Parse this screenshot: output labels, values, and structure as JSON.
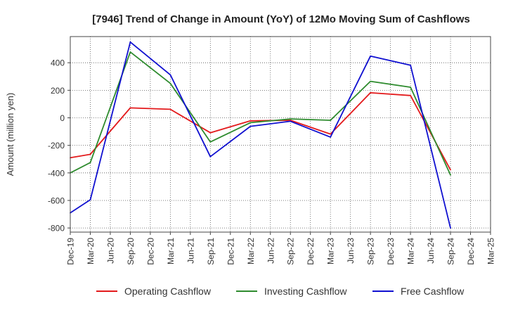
{
  "chart_data": {
    "type": "line",
    "title": "[7946]  Trend of Change in Amount (YoY) of 12Mo Moving Sum of Cashflows",
    "xlabel": "",
    "ylabel": "Amount (million yen)",
    "ylim": [
      -830,
      590
    ],
    "yticks": [
      -800,
      -600,
      -400,
      -200,
      0,
      200,
      400
    ],
    "ytick_labels": [
      "-800",
      "-600",
      "-400",
      "-200",
      "0",
      "200",
      "400"
    ],
    "categories": [
      "Dec-19",
      "Mar-20",
      "Jun-20",
      "Sep-20",
      "Dec-20",
      "Mar-21",
      "Jun-21",
      "Sep-21",
      "Dec-21",
      "Mar-22",
      "Jun-22",
      "Sep-22",
      "Dec-22",
      "Mar-23",
      "Jun-23",
      "Sep-23",
      "Dec-23",
      "Mar-24",
      "Jun-24",
      "Sep-24",
      "Dec-24",
      "Mar-25"
    ],
    "grid": true,
    "legend_position": "bottom",
    "series": [
      {
        "name": "Operating Cashflow",
        "color": "#e31a1c",
        "values": [
          -290,
          -265,
          null,
          72,
          null,
          62,
          null,
          -108,
          null,
          -22,
          null,
          -18,
          null,
          -118,
          null,
          182,
          null,
          162,
          null,
          -378,
          null,
          null
        ]
      },
      {
        "name": "Investing Cashflow",
        "color": "#2e8b2e",
        "values": [
          -400,
          -325,
          null,
          478,
          null,
          250,
          null,
          -175,
          null,
          -35,
          null,
          -8,
          null,
          -18,
          null,
          265,
          null,
          222,
          null,
          -415,
          null,
          null
        ]
      },
      {
        "name": "Free Cashflow",
        "color": "#1010d0",
        "values": [
          -690,
          -595,
          null,
          550,
          null,
          312,
          null,
          -282,
          null,
          -62,
          null,
          -25,
          null,
          -140,
          null,
          448,
          null,
          382,
          null,
          -800,
          null,
          null
        ]
      }
    ]
  }
}
